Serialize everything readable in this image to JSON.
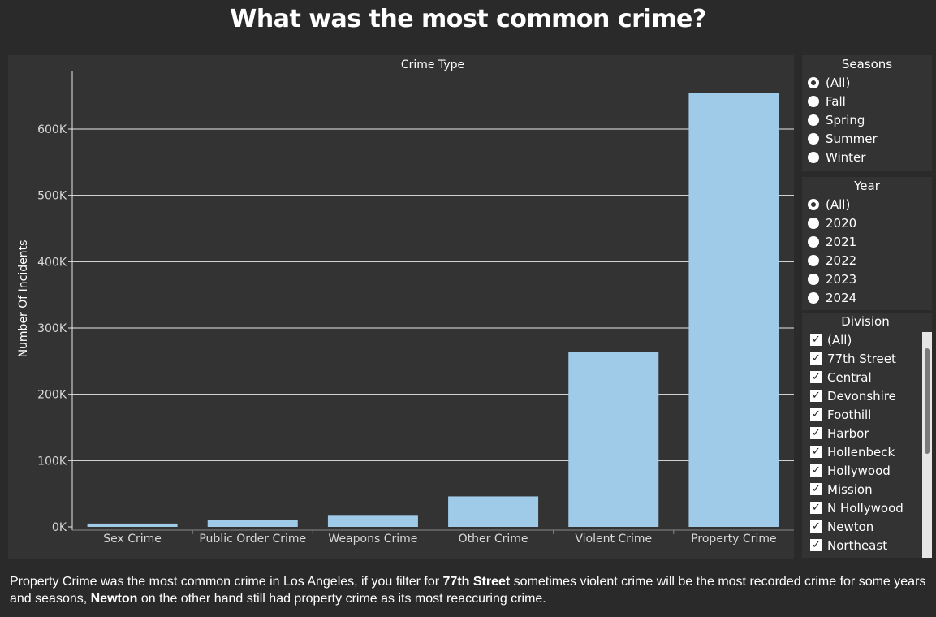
{
  "page": {
    "title": "What was the most common crime?"
  },
  "chart_data": {
    "type": "bar",
    "title": "Crime Type",
    "xlabel": "",
    "ylabel": "Number Of Incidents",
    "categories": [
      "Sex Crime",
      "Public Order Crime",
      "Weapons Crime",
      "Other Crime",
      "Violent Crime",
      "Property Crime"
    ],
    "values": [
      5000,
      11000,
      18000,
      46000,
      264000,
      655000
    ],
    "ylim": [
      0,
      690000
    ],
    "yticks": [
      0,
      100000,
      200000,
      300000,
      400000,
      500000,
      600000
    ],
    "ytick_labels": [
      "0K",
      "100K",
      "200K",
      "300K",
      "400K",
      "500K",
      "600K"
    ],
    "bar_color": "#a0cbe8",
    "grid": true
  },
  "filters": {
    "seasons": {
      "title": "Seasons",
      "options": [
        "(All)",
        "Fall",
        "Spring",
        "Summer",
        "Winter"
      ],
      "selected": "(All)"
    },
    "year": {
      "title": "Year",
      "options": [
        "(All)",
        "2020",
        "2021",
        "2022",
        "2023",
        "2024"
      ],
      "selected": "(All)"
    },
    "division": {
      "title": "Division",
      "options": [
        "(All)",
        "77th Street",
        "Central",
        "Devonshire",
        "Foothill",
        "Harbor",
        "Hollenbeck",
        "Hollywood",
        "Mission",
        "N Hollywood",
        "Newton",
        "Northeast"
      ],
      "checked_mark": "✓"
    }
  },
  "footer": {
    "part1": "Property Crime was the most common crime in Los Angeles, if you filter for ",
    "bold1": "77th Street",
    "part2": " sometimes violent crime will be the most recorded crime for some years and seasons, ",
    "bold2": "Newton",
    "part3": " on the other hand still had property crime as its most reaccuring crime."
  },
  "colors": {
    "background": "#2a2a2a",
    "panel": "#333333",
    "bar": "#a0cbe8"
  }
}
